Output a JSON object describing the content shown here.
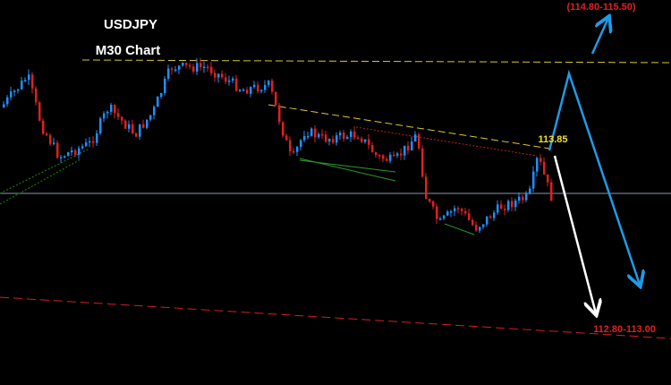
{
  "title": "USDJPY",
  "subtitle": "M30 Chart",
  "annotations": {
    "upper_target": "(114.80-115.50)",
    "level": "113.85",
    "lower_target": "112.80-113.00"
  }
}
